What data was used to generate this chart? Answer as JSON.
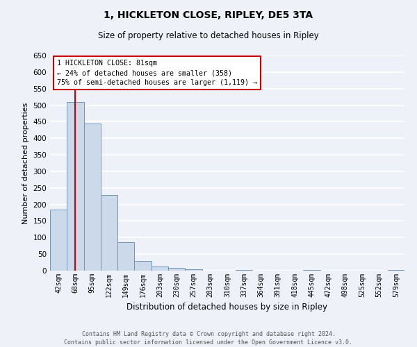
{
  "title": "1, HICKLETON CLOSE, RIPLEY, DE5 3TA",
  "subtitle": "Size of property relative to detached houses in Ripley",
  "xlabel": "Distribution of detached houses by size in Ripley",
  "ylabel": "Number of detached properties",
  "bar_labels": [
    "42sqm",
    "68sqm",
    "95sqm",
    "122sqm",
    "149sqm",
    "176sqm",
    "203sqm",
    "230sqm",
    "257sqm",
    "283sqm",
    "310sqm",
    "337sqm",
    "364sqm",
    "391sqm",
    "418sqm",
    "445sqm",
    "472sqm",
    "498sqm",
    "525sqm",
    "552sqm",
    "579sqm"
  ],
  "bar_values": [
    185,
    510,
    445,
    228,
    85,
    30,
    13,
    8,
    5,
    0,
    0,
    3,
    0,
    0,
    0,
    3,
    0,
    0,
    0,
    0,
    3
  ],
  "bar_color": "#ccd9ea",
  "bar_edge_color": "#7096b8",
  "ylim": [
    0,
    650
  ],
  "yticks": [
    0,
    50,
    100,
    150,
    200,
    250,
    300,
    350,
    400,
    450,
    500,
    550,
    600,
    650
  ],
  "annotation_line1": "1 HICKLETON CLOSE: 81sqm",
  "annotation_line2": "← 24% of detached houses are smaller (358)",
  "annotation_line3": "75% of semi-detached houses are larger (1,119) →",
  "red_line_color": "#cc0000",
  "annotation_box_edge": "#cc0000",
  "footer_line1": "Contains HM Land Registry data © Crown copyright and database right 2024.",
  "footer_line2": "Contains public sector information licensed under the Open Government Licence v3.0.",
  "bg_color": "#eef2f8",
  "plot_bg_color": "#eef2f8",
  "grid_color": "#ffffff"
}
